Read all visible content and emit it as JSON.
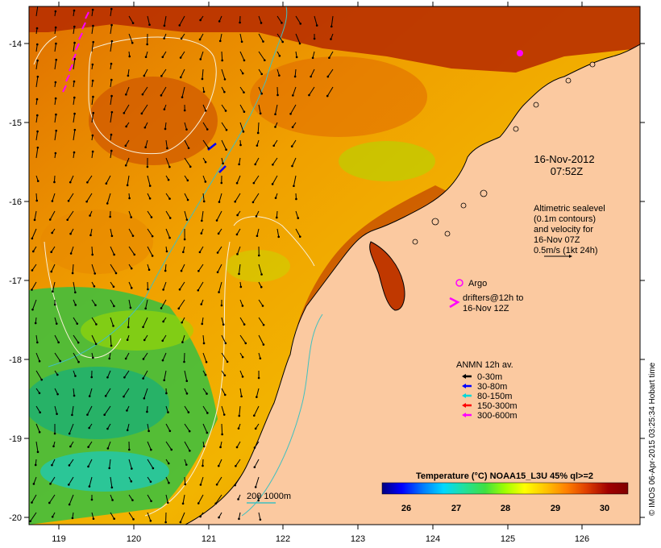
{
  "map": {
    "timestamp_date": "16-Nov-2012",
    "timestamp_time": "07:52Z",
    "sealevel_note": [
      "Altimetric sealevel",
      "(0.1m contours)",
      "and velocity for",
      "16-Nov 07Z",
      "0.5m/s (1kt 24h)"
    ],
    "argo_label": "Argo",
    "drifter_label_1": "drifters@12h to",
    "drifter_label_2": "16-Nov 12Z",
    "anmn_title": "ANMN 12h av.",
    "anmn_items": [
      {
        "label": "0-30m",
        "color": "#000000"
      },
      {
        "label": "30-80m",
        "color": "#0000ff"
      },
      {
        "label": "80-150m",
        "color": "#00d8d8"
      },
      {
        "label": "150-300m",
        "color": "#ff0000"
      },
      {
        "label": "300-600m",
        "color": "#ff00ff"
      }
    ],
    "scale_label": "200  1000m",
    "colorbar_title": "Temperature (°C) NOAA15_L3U 45% ql>=2",
    "colorbar_ticks": [
      "26",
      "27",
      "28",
      "29",
      "30"
    ],
    "colorbar_colors": [
      "#000080",
      "#0000ff",
      "#0080ff",
      "#00d8ff",
      "#20e0a0",
      "#40e040",
      "#a0ff00",
      "#ffff00",
      "#ffc000",
      "#ff8000",
      "#e04000",
      "#a00000",
      "#800000"
    ],
    "x_ticks": [
      "119",
      "120",
      "121",
      "122",
      "123",
      "124",
      "125",
      "126"
    ],
    "y_ticks": [
      "-14",
      "-15",
      "-16",
      "-17",
      "-18",
      "-19",
      "-20"
    ],
    "credit": "© IMOS 06-Apr-2015 03:25:34 Hobart time",
    "colors": {
      "land": "#fbc9a0",
      "sea_warm": "#f0a000",
      "contour": "#f8f0d8",
      "isobath": "#40c0c0"
    }
  }
}
